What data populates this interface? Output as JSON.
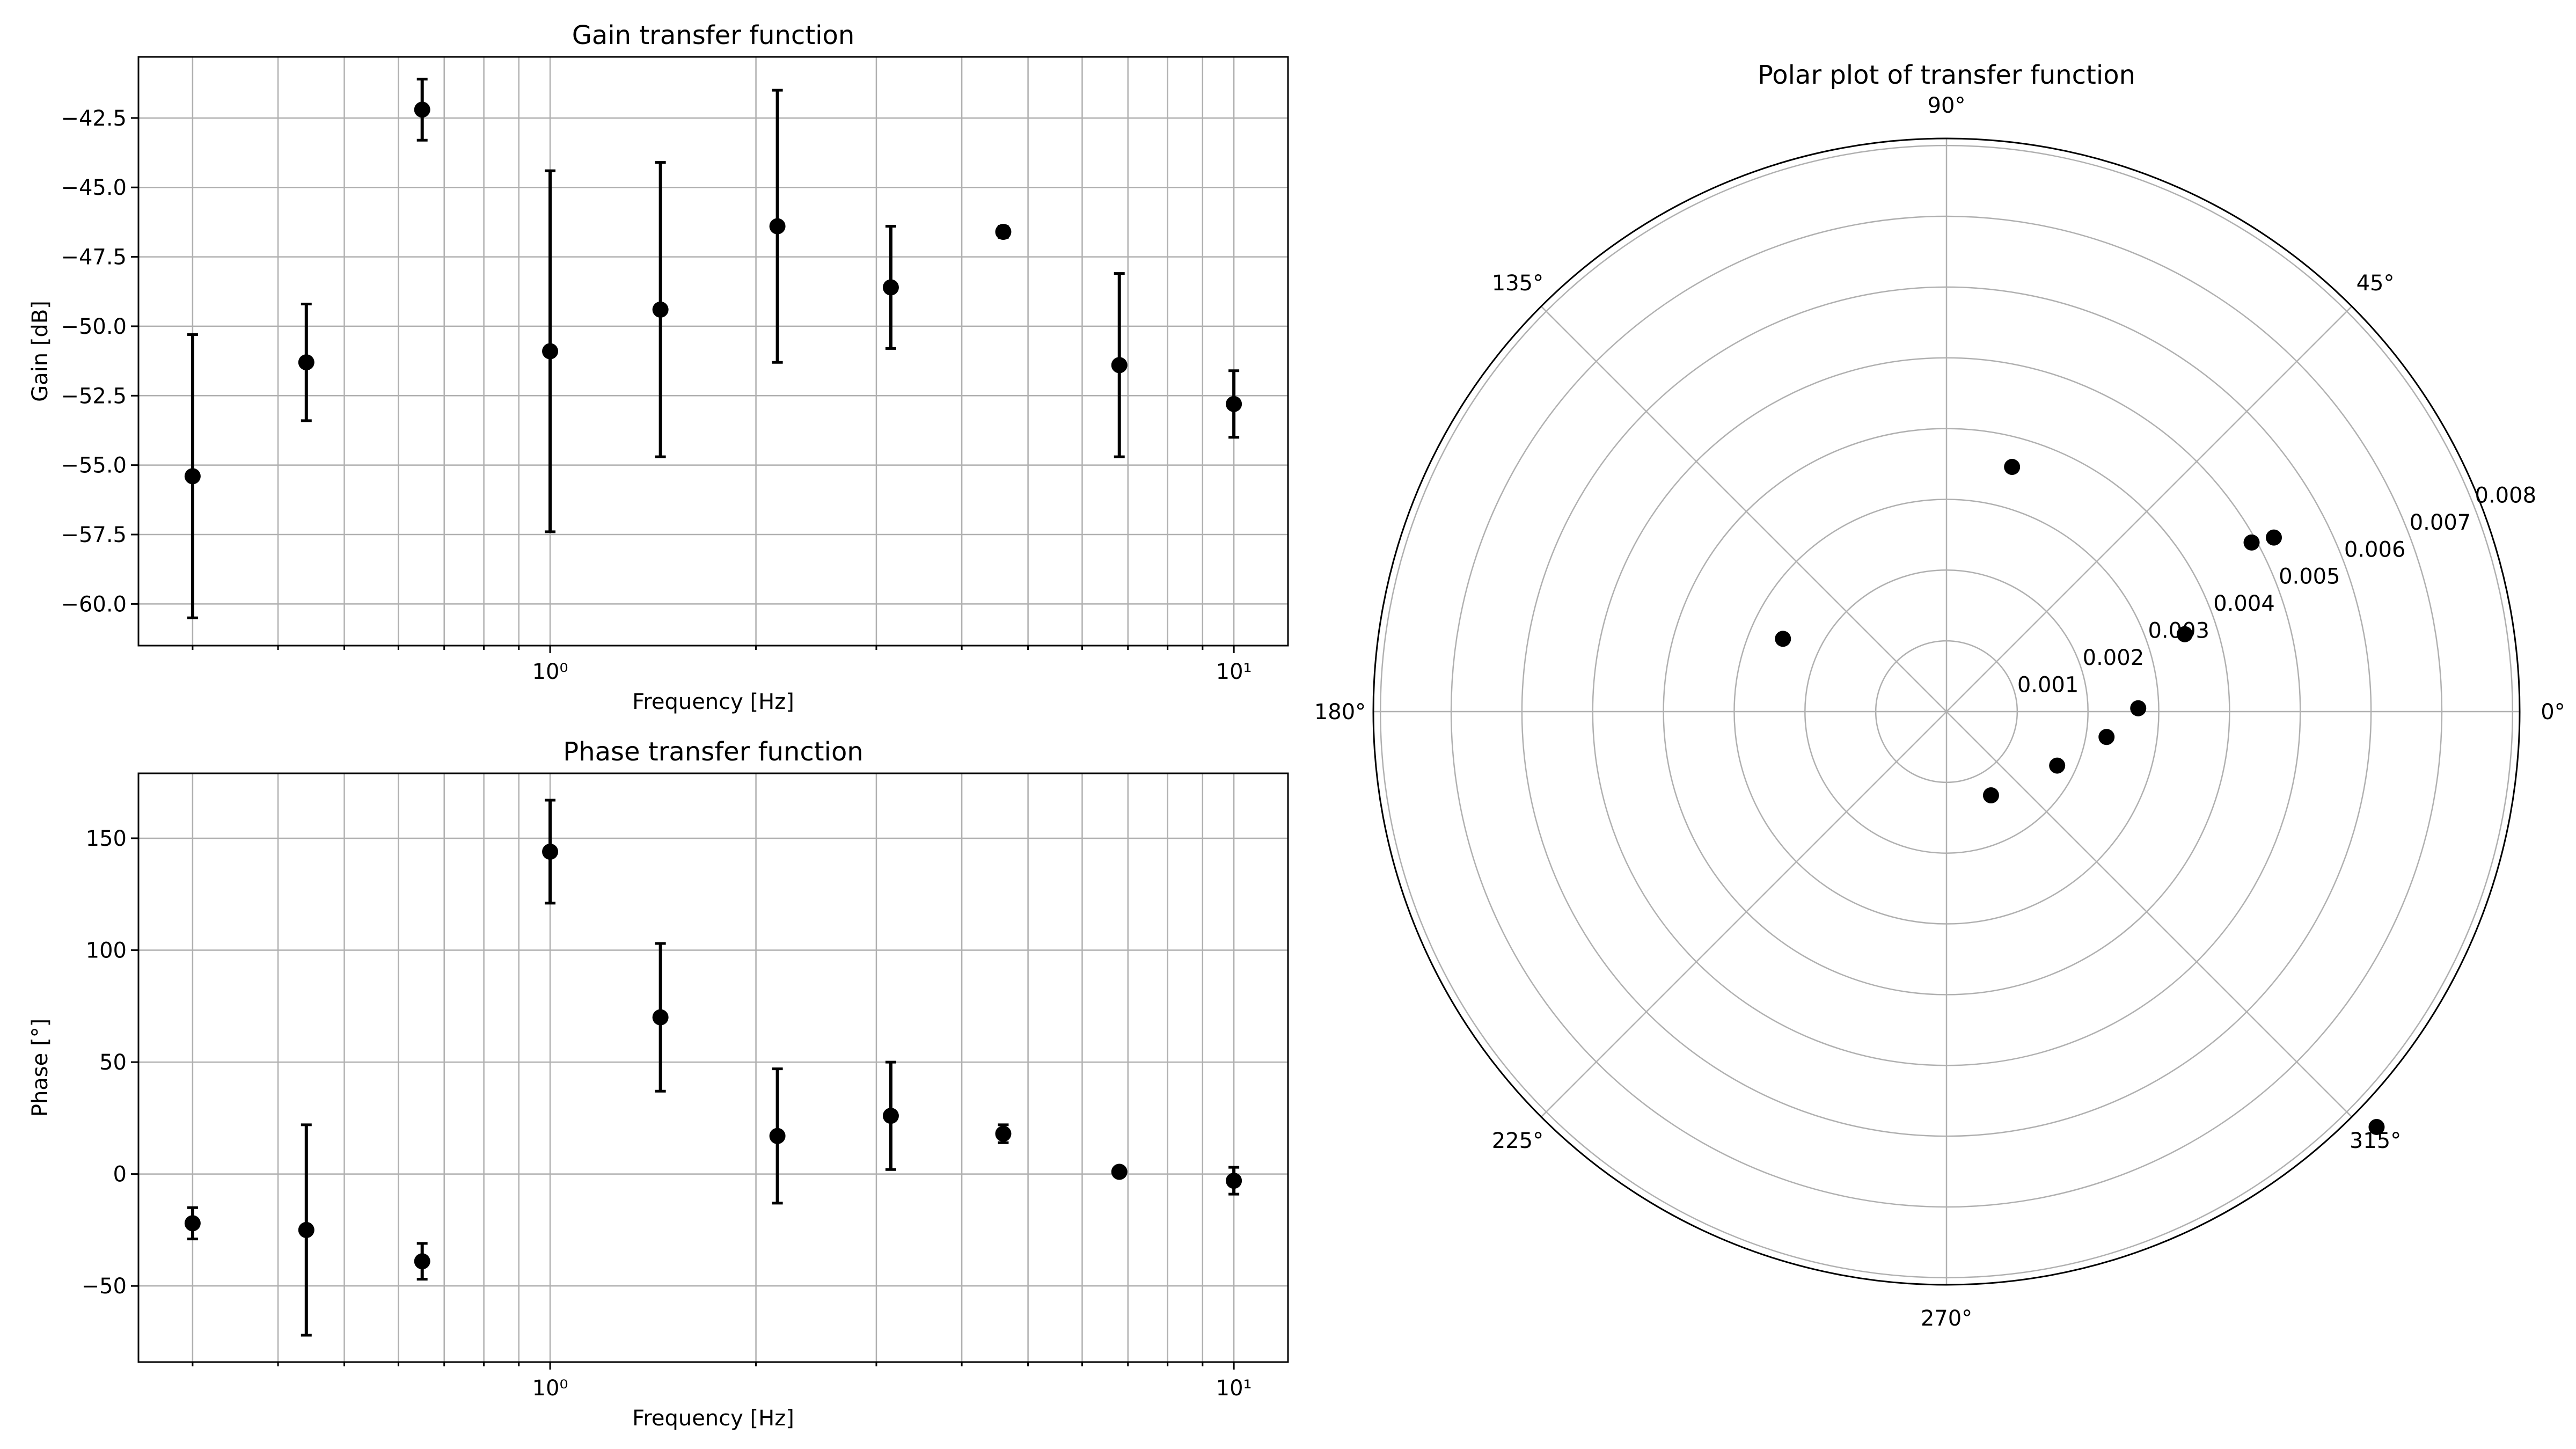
{
  "figure": {
    "background": "#ffffff",
    "marker_color": "#000000",
    "grid_color": "#b0b0b0"
  },
  "chart_data": [
    {
      "id": "gain",
      "type": "scatter",
      "title": "Gain transfer function",
      "xlabel": "Frequency [Hz]",
      "ylabel": "Gain [dB]",
      "xscale": "log",
      "xlim": [
        0.25,
        12.0
      ],
      "ylim": [
        -61.5,
        -40.3
      ],
      "grid": true,
      "x": [
        0.3,
        0.44,
        0.65,
        1.0,
        1.45,
        2.15,
        3.15,
        4.6,
        6.8,
        10.0
      ],
      "y": [
        -55.4,
        -51.3,
        -42.2,
        -50.9,
        -49.4,
        -46.4,
        -48.6,
        -46.6,
        -51.4,
        -52.8
      ],
      "yerr": [
        5.1,
        2.1,
        1.1,
        6.5,
        5.3,
        4.9,
        2.2,
        0.2,
        3.3,
        1.2
      ],
      "x_ticks": [
        1,
        10
      ],
      "x_tick_labels": [
        "10⁰",
        "10¹"
      ],
      "y_ticks": [
        -60.0,
        -57.5,
        -55.0,
        -52.5,
        -50.0,
        -47.5,
        -45.0,
        -42.5
      ],
      "y_tick_labels": [
        "−60.0",
        "−57.5",
        "−55.0",
        "−52.5",
        "−50.0",
        "−47.5",
        "−45.0",
        "−42.5"
      ]
    },
    {
      "id": "phase",
      "type": "scatter",
      "title": "Phase transfer function",
      "xlabel": "Frequency [Hz]",
      "ylabel": "Phase [°]",
      "xscale": "log",
      "xlim": [
        0.25,
        12.0
      ],
      "ylim": [
        -84,
        179
      ],
      "grid": true,
      "x": [
        0.3,
        0.44,
        0.65,
        1.0,
        1.45,
        2.15,
        3.15,
        4.6,
        6.8,
        10.0
      ],
      "y": [
        -22,
        -25,
        -39,
        144,
        70,
        17,
        26,
        18,
        1,
        -3
      ],
      "yerr": [
        7,
        47,
        8,
        23,
        33,
        30,
        24,
        4,
        1,
        6
      ],
      "x_ticks": [
        1,
        10
      ],
      "x_tick_labels": [
        "10⁰",
        "10¹"
      ],
      "y_ticks": [
        -50,
        0,
        50,
        100,
        150
      ],
      "y_tick_labels": [
        "−50",
        "0",
        "50",
        "100",
        "150"
      ]
    },
    {
      "id": "polar",
      "type": "scatter",
      "title": "Polar plot of transfer function",
      "projection": "polar",
      "rmax": 0.0081,
      "grid": true,
      "theta_deg": [
        -44,
        29,
        75,
        156,
        -26,
        -62,
        1,
        18,
        -9,
        28
      ],
      "r": [
        0.00845,
        0.00493,
        0.00358,
        0.00253,
        0.00174,
        0.00134,
        0.00271,
        0.00354,
        0.00229,
        0.00524
      ],
      "r_ticks": [
        0.001,
        0.002,
        0.003,
        0.004,
        0.005,
        0.006,
        0.007,
        0.008
      ],
      "r_tick_labels": [
        "0.001",
        "0.002",
        "0.003",
        "0.004",
        "0.005",
        "0.006",
        "0.007",
        "0.008"
      ],
      "r_label_angle_deg": 22.5,
      "theta_ticks": [
        0,
        45,
        90,
        135,
        180,
        225,
        270,
        315
      ],
      "theta_tick_labels": [
        "0°",
        "45°",
        "90°",
        "135°",
        "180°",
        "225°",
        "270°",
        "315°"
      ]
    }
  ]
}
